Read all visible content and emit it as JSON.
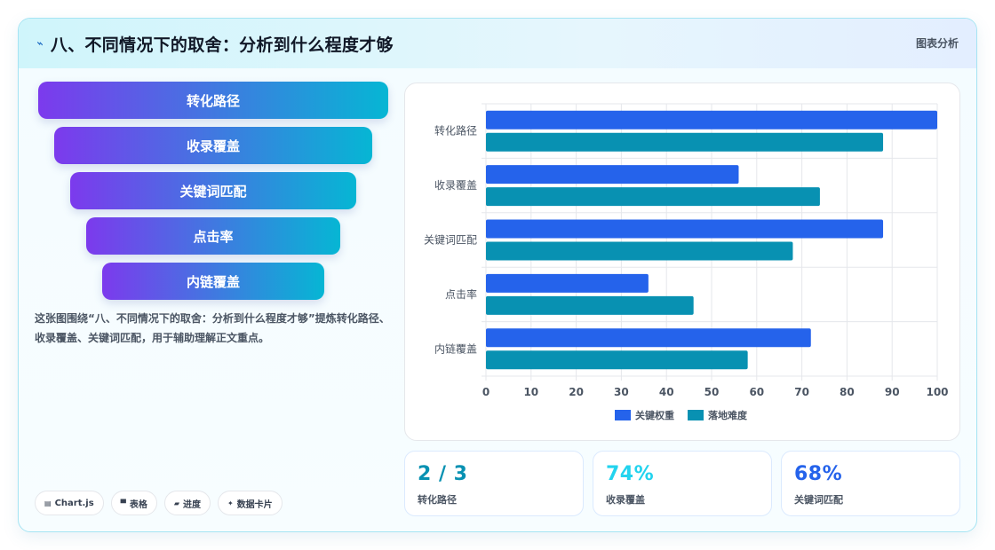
{
  "header": {
    "title": "八、不同情况下的取舍：分析到什么程度才够",
    "tag": "图表分析",
    "icon": "bolt-icon"
  },
  "funnel": [
    "转化路径",
    "收录覆盖",
    "关键词匹配",
    "点击率",
    "内链覆盖"
  ],
  "description": "这张图围绕“八、不同情况下的取舍：分析到什么程度才够”提炼转化路径、收录覆盖、关键词匹配，用于辅助理解正文重点。",
  "pills": [
    {
      "icon": "chart-icon",
      "label": "Chart.js"
    },
    {
      "icon": "table-icon",
      "label": "表格"
    },
    {
      "icon": "progress-icon",
      "label": "进度"
    },
    {
      "icon": "sparkle-icon",
      "label": "数据卡片"
    }
  ],
  "stats": [
    {
      "value": "2 / 3",
      "label": "转化路径",
      "color": "#0891b2"
    },
    {
      "value": "74%",
      "label": "收录覆盖",
      "color": "#22d3ee"
    },
    {
      "value": "68%",
      "label": "关键词匹配",
      "color": "#2563eb"
    }
  ],
  "chart_data": {
    "type": "bar",
    "orientation": "horizontal",
    "categories": [
      "转化路径",
      "收录覆盖",
      "关键词匹配",
      "点击率",
      "内链覆盖"
    ],
    "series": [
      {
        "name": "关键权重",
        "values": [
          100,
          56,
          88,
          36,
          72
        ],
        "color": "#2563eb"
      },
      {
        "name": "落地难度",
        "values": [
          88,
          74,
          68,
          46,
          58
        ],
        "color": "#0891b2"
      }
    ],
    "xlim": [
      0,
      100
    ],
    "xticks": [
      0,
      10,
      20,
      30,
      40,
      50,
      60,
      70,
      80,
      90,
      100
    ],
    "grid": true,
    "legend": "bottom"
  }
}
